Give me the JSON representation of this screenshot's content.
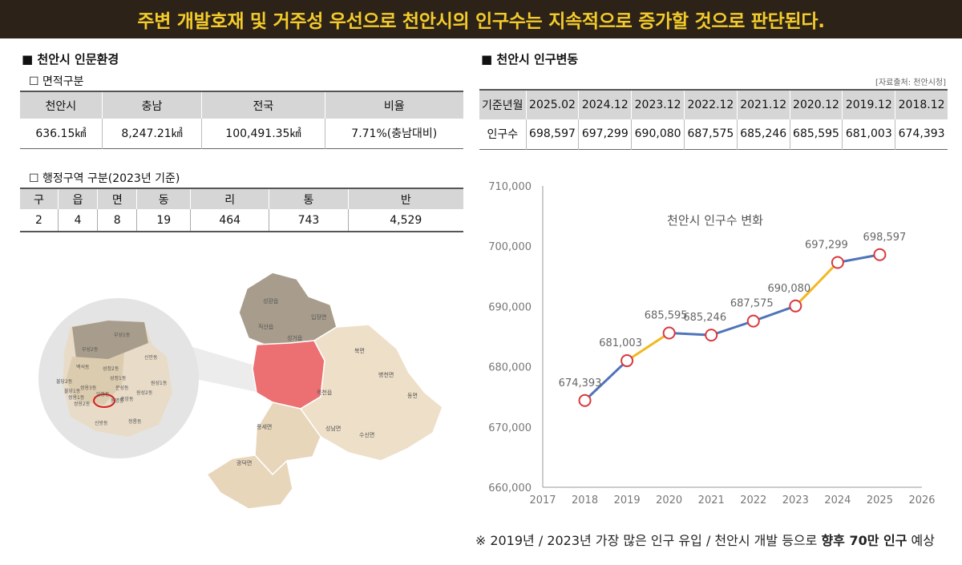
{
  "banner": {
    "text": "주변 개발호재 및 거주성 우선으로 천안시의 인구수는 지속적으로 증가할 것으로 판단된다."
  },
  "left": {
    "title": "■ 천안시 인문환경",
    "area": {
      "subtitle": "☐ 면적구분",
      "headers": [
        "천안시",
        "충남",
        "전국",
        "비율"
      ],
      "values": [
        "636.15㎢",
        "8,247.21㎢",
        "100,491.35㎢",
        "7.71%(충남대비)"
      ]
    },
    "admin": {
      "subtitle": "☐ 행정구역 구분(2023년 기준)",
      "headers": [
        "구",
        "읍",
        "면",
        "동",
        "리",
        "통",
        "반"
      ],
      "values": [
        "2",
        "4",
        "8",
        "19",
        "464",
        "743",
        "4,529"
      ]
    },
    "map": {
      "north_labels": [
        "성환읍",
        "입장면",
        "직산읍",
        "성거읍"
      ],
      "east_labels": [
        "북면",
        "병천면",
        "동면",
        "목천읍",
        "성남면",
        "수신면"
      ],
      "south_labels": [
        "풍세면",
        "광덕면"
      ],
      "inset_labels": [
        "부성1동",
        "부성2동",
        "신안동",
        "백석동",
        "성정2동",
        "성정1동",
        "불당2동",
        "불당1동",
        "쌍용3동",
        "쌍용1동",
        "쌍용2동",
        "봉명동",
        "문성동",
        "원성1동",
        "원성2동",
        "중앙동",
        "일봉동",
        "신방동",
        "청룡동"
      ],
      "colors": {
        "north": "#a89d8c",
        "east": "#eedfc8",
        "highlight": "#ec6f72",
        "inset_bg": "#e4e4e4"
      }
    }
  },
  "right": {
    "title": "■ 천안시 인구변동",
    "source": "[자료출처: 천안시청]",
    "pop_table": {
      "row_headers": [
        "기준년월",
        "인구수"
      ],
      "periods": [
        "2025.02",
        "2024.12",
        "2023.12",
        "2022.12",
        "2021.12",
        "2020.12",
        "2019.12",
        "2018.12"
      ],
      "values": [
        "698,597",
        "697,299",
        "690,080",
        "687,575",
        "685,246",
        "685,595",
        "681,003",
        "674,393"
      ]
    }
  },
  "chart_data": {
    "type": "line",
    "title": "천안시 인구수 변화",
    "xlabel": "",
    "ylabel": "",
    "x": [
      2018,
      2019,
      2020,
      2021,
      2022,
      2023,
      2024,
      2025
    ],
    "series": [
      {
        "values": [
          674393,
          681003,
          685595,
          685246,
          687575,
          690080,
          697299,
          698597
        ]
      }
    ],
    "data_labels": [
      "674,393",
      "681,003",
      "685,595",
      "685,246",
      "687,575",
      "690,080",
      "697,299",
      "698,597"
    ],
    "xlim": [
      2017,
      2026
    ],
    "ylim": [
      660000,
      710000
    ],
    "x_ticks": [
      "2017",
      "2018",
      "2019",
      "2020",
      "2021",
      "2022",
      "2023",
      "2024",
      "2025",
      "2026"
    ],
    "y_ticks": [
      "660,000",
      "670,000",
      "680,000",
      "690,000",
      "700,000",
      "710,000"
    ],
    "highlight_segments": [
      [
        2019,
        2020
      ],
      [
        2023,
        2024
      ]
    ],
    "colors": {
      "line": "#4f74b8",
      "highlight": "#f2b820",
      "marker": "#d9383c",
      "axis": "#999999",
      "label": "#666666"
    },
    "grid": false
  },
  "footnote": {
    "prefix": "※ 2019년 / 2023년 가장 많은 인구 유입 / 천안시 개발 등으로 ",
    "bold": "향후 70만 인구",
    "suffix": " 예상"
  }
}
